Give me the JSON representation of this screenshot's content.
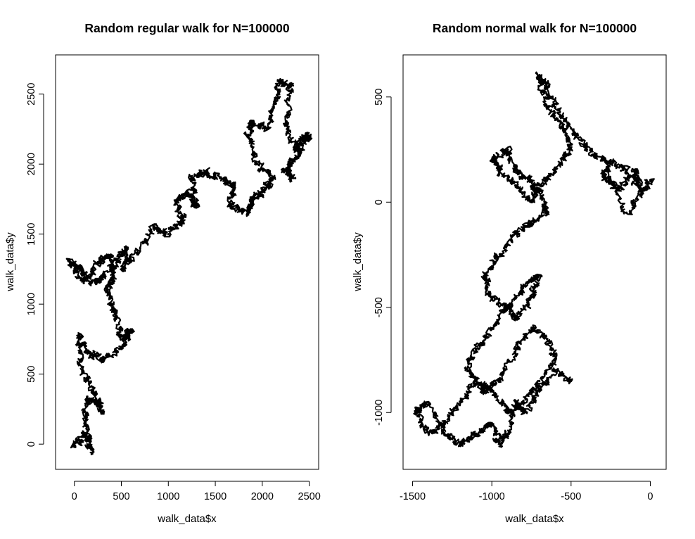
{
  "chart_data": [
    {
      "type": "line",
      "title": "Random regular walk for N=100000",
      "xlabel": "walk_data$x",
      "ylabel": "walk_data$y",
      "xlim": [
        -200,
        2600
      ],
      "ylim": [
        -180,
        2780
      ],
      "x_ticks": [
        0,
        500,
        1000,
        1500,
        2000,
        2500
      ],
      "y_ticks": [
        0,
        500,
        1000,
        1500,
        2000,
        2500
      ],
      "grid": false,
      "series": [
        {
          "x": [
            0,
            100,
            180,
            120,
            140,
            250,
            300,
            200,
            80,
            50,
            150,
            300,
            500,
            600,
            520,
            420,
            350,
            420,
            380,
            250,
            100,
            -50,
            80,
            180,
            320,
            450,
            560,
            520,
            700,
            850,
            1000,
            1150,
            1100,
            1200,
            1300,
            1250,
            1400,
            1550,
            1700,
            1650,
            1850,
            1900,
            2000,
            2100,
            1950,
            1850,
            1900,
            2050,
            2150,
            2200,
            2300,
            2250,
            2350,
            2450,
            2500,
            2400,
            2300,
            2250,
            2350
          ],
          "y": [
            -20,
            80,
            -40,
            150,
            320,
            300,
            220,
            380,
            550,
            780,
            650,
            600,
            680,
            820,
            750,
            950,
            1100,
            1200,
            1350,
            1300,
            1150,
            1300,
            1250,
            1150,
            1200,
            1300,
            1400,
            1250,
            1400,
            1550,
            1500,
            1600,
            1750,
            1800,
            1700,
            1900,
            1950,
            1900,
            1850,
            1700,
            1650,
            1750,
            1800,
            1900,
            2000,
            2200,
            2300,
            2250,
            2450,
            2600,
            2550,
            2300,
            2100,
            2200,
            2200,
            2100,
            2000,
            1950,
            1900
          ]
        }
      ]
    },
    {
      "type": "line",
      "title": "Random normal walk for N=100000",
      "xlabel": "walk_data$x",
      "ylabel": "walk_data$y",
      "xlim": [
        -1560,
        100
      ],
      "ylim": [
        -1270,
        700
      ],
      "x_ticks": [
        -1500,
        -1000,
        -500,
        0
      ],
      "y_ticks": [
        -1000,
        -500,
        0,
        500
      ],
      "grid": false,
      "series": [
        {
          "x": [
            0,
            -50,
            -150,
            -250,
            -300,
            -200,
            -100,
            -50,
            -150,
            -300,
            -400,
            -500,
            -600,
            -650,
            -700,
            -650,
            -550,
            -500,
            -600,
            -700,
            -750,
            -850,
            -950,
            -1000,
            -900,
            -850,
            -750,
            -700,
            -650,
            -750,
            -850,
            -950,
            -1050,
            -1000,
            -900,
            -850,
            -750,
            -700,
            -800,
            -900,
            -1000,
            -1100,
            -1150,
            -1050,
            -950,
            -850,
            -750,
            -650,
            -600,
            -700,
            -800,
            -900,
            -1000,
            -1100,
            -1200,
            -1300,
            -1400,
            -1480,
            -1400,
            -1300,
            -1200,
            -1100,
            -1000,
            -950,
            -900,
            -850,
            -800,
            -700,
            -600,
            -500
          ],
          "y": [
            100,
            50,
            150,
            200,
            120,
            60,
            150,
            50,
            -50,
            200,
            250,
            350,
            450,
            550,
            600,
            450,
            350,
            250,
            150,
            80,
            0,
            80,
            150,
            200,
            250,
            150,
            100,
            50,
            -50,
            -100,
            -150,
            -250,
            -350,
            -450,
            -500,
            -550,
            -450,
            -350,
            -400,
            -500,
            -600,
            -700,
            -800,
            -900,
            -850,
            -700,
            -600,
            -650,
            -750,
            -850,
            -950,
            -1000,
            -900,
            -850,
            -950,
            -1050,
            -1100,
            -1000,
            -950,
            -1100,
            -1150,
            -1100,
            -1050,
            -1150,
            -1100,
            -950,
            -1000,
            -900,
            -800,
            -850
          ]
        }
      ]
    }
  ]
}
